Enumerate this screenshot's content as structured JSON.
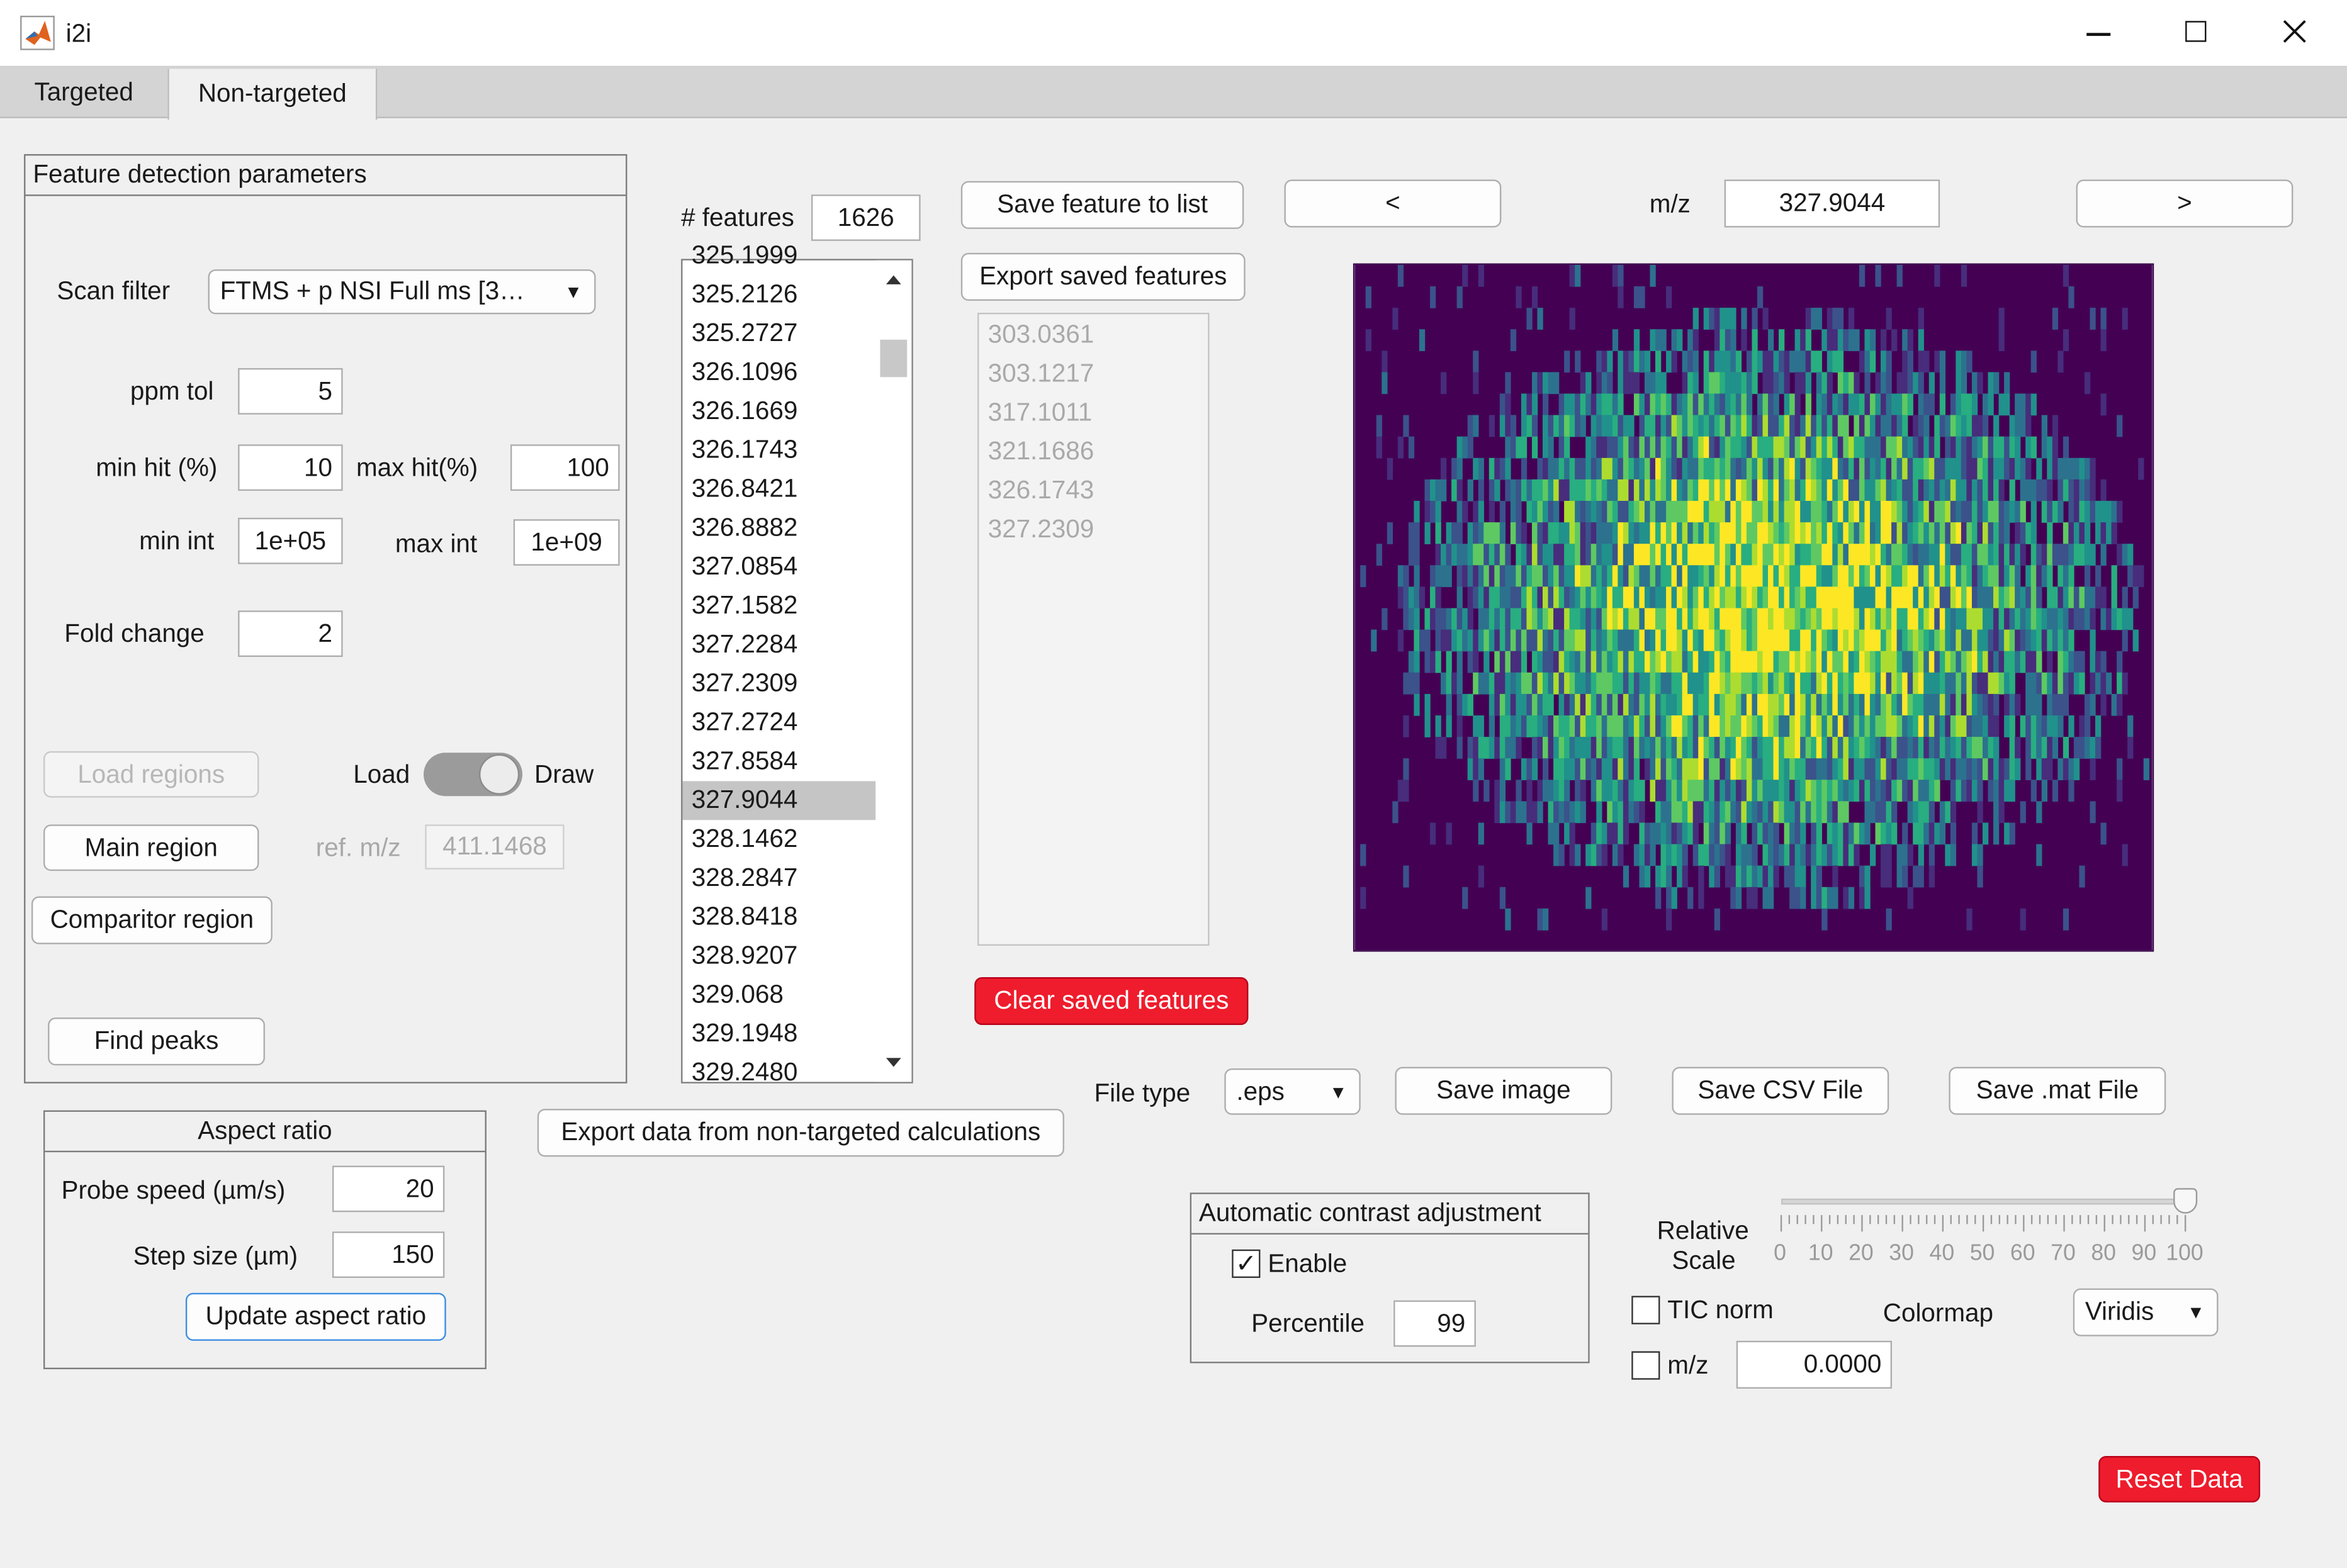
{
  "window": {
    "title": "i2i"
  },
  "tabs": [
    "Targeted",
    "Non-targeted"
  ],
  "feature_panel": {
    "title": "Feature detection parameters",
    "scan_filter_label": "Scan filter",
    "scan_filter_value": "FTMS + p NSI Full ms [3…",
    "ppm_tol_label": "ppm tol",
    "ppm_tol": "5",
    "min_hit_label": "min hit (%)",
    "min_hit": "10",
    "max_hit_label": "max hit(%)",
    "max_hit": "100",
    "min_int_label": "min int",
    "min_int": "1e+05",
    "max_int_label": "max int",
    "max_int": "1e+09",
    "fold_change_label": "Fold change",
    "fold_change": "2",
    "load_regions": "Load regions",
    "switch_left": "Load",
    "switch_right": "Draw",
    "main_region": "Main region",
    "ref_mz_label": "ref. m/z",
    "ref_mz": "411.1468",
    "comparitor_region": "Comparitor region",
    "find_peaks": "Find peaks"
  },
  "aspect_panel": {
    "title": "Aspect ratio",
    "probe_speed_label": "Probe speed (µm/s)",
    "probe_speed": "20",
    "step_size_label": "Step size (µm)",
    "step_size": "150",
    "update_button": "Update aspect ratio"
  },
  "features": {
    "count_label": "# features",
    "count": "1626",
    "partial_top": "325.1999",
    "items": [
      "325.2126",
      "325.2727",
      "326.1096",
      "326.1669",
      "326.1743",
      "326.8421",
      "326.8882",
      "327.0854",
      "327.1582",
      "327.2284",
      "327.2309",
      "327.2724",
      "327.8584",
      "327.9044",
      "328.1462",
      "328.2847",
      "328.8418",
      "328.9207",
      "329.068",
      "329.1948"
    ],
    "selected": "327.9044",
    "partial_bottom": "329.2480",
    "scroll_fraction": 0.33
  },
  "export_nontargeted": "Export data from non-targeted calculations",
  "saved": {
    "save_button": "Save feature to list",
    "export_button": "Export saved features",
    "items": [
      "303.0361",
      "303.1217",
      "317.1011",
      "321.1686",
      "326.1743",
      "327.2309"
    ],
    "clear_button": "Clear saved features"
  },
  "nav": {
    "prev": "<",
    "next": ">",
    "mz_label": "m/z",
    "mz_value": "327.9044"
  },
  "image_colors": [
    "#440154",
    "#472d7b",
    "#3b528b",
    "#2c728e",
    "#21918c",
    "#28ae80",
    "#5ec962",
    "#addc30",
    "#fde725"
  ],
  "file": {
    "type_label": "File type",
    "type_value": ".eps",
    "save_image": "Save image",
    "save_csv": "Save CSV File",
    "save_mat": "Save .mat File"
  },
  "contrast": {
    "title": "Automatic contrast adjustment",
    "enable_label": "Enable",
    "enable_checked": true,
    "percentile_label": "Percentile",
    "percentile": "99"
  },
  "scale": {
    "label_line1": "Relative",
    "label_line2": "Scale",
    "ticks": [
      "0",
      "10",
      "20",
      "30",
      "40",
      "50",
      "60",
      "70",
      "80",
      "90",
      "100"
    ],
    "value": 100
  },
  "tic_norm_label": "TIC norm",
  "colormap_label": "Colormap",
  "colormap_value": "Viridis",
  "mz_norm_label": "m/z",
  "mz_norm_value": "0.0000",
  "reset_button": "Reset Data"
}
